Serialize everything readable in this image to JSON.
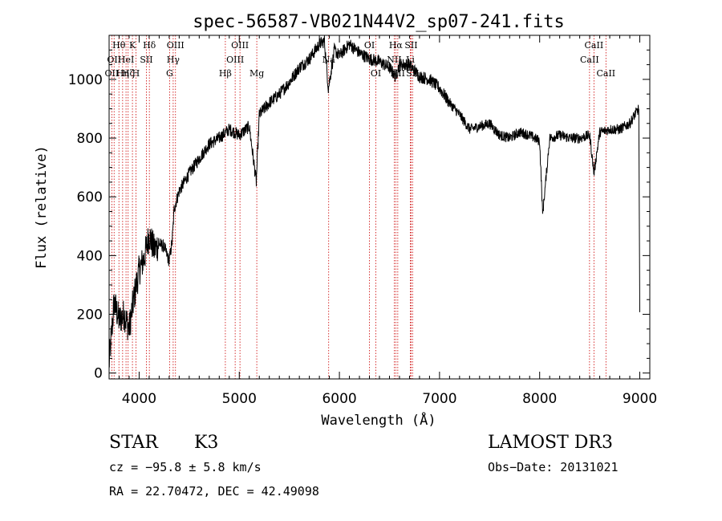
{
  "chart_data": {
    "type": "line",
    "title": "spec-56587-VB021N44V2_sp07-241.fits",
    "xlabel": "Wavelength (Å)",
    "ylabel": "Flux (relative)",
    "xlim": [
      3700,
      9100
    ],
    "ylim": [
      -20,
      1150
    ],
    "xticks": [
      4000,
      5000,
      6000,
      7000,
      8000,
      9000
    ],
    "xticklabels": [
      "4000",
      "5000",
      "6000",
      "7000",
      "8000",
      "9000"
    ],
    "yticks": [
      0,
      200,
      400,
      600,
      800,
      1000
    ],
    "yticklabels": [
      "0",
      "200",
      "400",
      "600",
      "800",
      "1000"
    ],
    "grid": false,
    "series": [
      {
        "name": "flux",
        "x": [
          3700,
          3750,
          3800,
          3850,
          3900,
          3950,
          4000,
          4050,
          4100,
          4150,
          4200,
          4250,
          4300,
          4330,
          4350,
          4400,
          4500,
          4600,
          4700,
          4800,
          4900,
          5000,
          5100,
          5170,
          5200,
          5300,
          5400,
          5500,
          5600,
          5700,
          5800,
          5850,
          5890,
          5950,
          6000,
          6100,
          6200,
          6300,
          6400,
          6500,
          6560,
          6600,
          6700,
          6800,
          6900,
          7000,
          7100,
          7200,
          7300,
          7400,
          7500,
          7600,
          7700,
          7800,
          7900,
          8000,
          8030,
          8100,
          8200,
          8300,
          8400,
          8500,
          8542,
          8600,
          8700,
          8800,
          8900,
          8950,
          8990,
          9000
        ],
        "y": [
          30,
          240,
          180,
          200,
          150,
          260,
          350,
          390,
          470,
          420,
          440,
          430,
          380,
          450,
          560,
          620,
          680,
          730,
          780,
          800,
          830,
          810,
          840,
          650,
          880,
          920,
          950,
          990,
          1040,
          1070,
          1120,
          1130,
          970,
          1100,
          1080,
          1120,
          1090,
          1070,
          1060,
          1040,
          1010,
          1050,
          1050,
          1010,
          1000,
          970,
          920,
          880,
          830,
          840,
          850,
          810,
          800,
          820,
          810,
          790,
          540,
          800,
          810,
          800,
          800,
          810,
          680,
          820,
          830,
          830,
          850,
          880,
          900,
          200
        ]
      }
    ],
    "lines": [
      {
        "x": 3727,
        "row": 2,
        "label": "OII"
      },
      {
        "x": 3750,
        "row": 1,
        "label": "OII"
      },
      {
        "x": 3798,
        "row": 0,
        "label": "Hθ"
      },
      {
        "x": 3835,
        "row": 2,
        "label": "Hη"
      },
      {
        "x": 3869,
        "row": 1,
        "label": "HeI"
      },
      {
        "x": 3890,
        "row": 2,
        "label": "Hζ"
      },
      {
        "x": 3933,
        "row": 0,
        "label": "K"
      },
      {
        "x": 3968,
        "row": 2,
        "label": "H"
      },
      {
        "x": 4072,
        "row": 1,
        "label": "SII"
      },
      {
        "x": 4102,
        "row": 0,
        "label": "Hδ"
      },
      {
        "x": 4304,
        "row": 2,
        "label": "G"
      },
      {
        "x": 4340,
        "row": 1,
        "label": "Hγ"
      },
      {
        "x": 4363,
        "row": 0,
        "label": "OIII"
      },
      {
        "x": 4861,
        "row": 2,
        "label": "Hβ"
      },
      {
        "x": 4959,
        "row": 1,
        "label": "OIII"
      },
      {
        "x": 5007,
        "row": 0,
        "label": "OIII"
      },
      {
        "x": 5175,
        "row": 2,
        "label": "Mg"
      },
      {
        "x": 5893,
        "row": 1,
        "label": "Na"
      },
      {
        "x": 6300,
        "row": 0,
        "label": "OI"
      },
      {
        "x": 6364,
        "row": 2,
        "label": "OI"
      },
      {
        "x": 6548,
        "row": 1,
        "label": "NII"
      },
      {
        "x": 6563,
        "row": 0,
        "label": "Hα"
      },
      {
        "x": 6583,
        "row": 2,
        "label": "NII"
      },
      {
        "x": 6708,
        "row": 1,
        "label": "Li"
      },
      {
        "x": 6716,
        "row": 0,
        "label": "SII"
      },
      {
        "x": 6731,
        "row": 2,
        "label": "SII"
      },
      {
        "x": 8498,
        "row": 1,
        "label": "CaII"
      },
      {
        "x": 8542,
        "row": 0,
        "label": "CaII"
      },
      {
        "x": 8662,
        "row": 2,
        "label": "CaII"
      }
    ]
  },
  "info": {
    "class_label": "STAR",
    "subclass_label": "K3",
    "survey": "LAMOST DR3",
    "cz": "cz = −95.8 ± 5.8 km/s",
    "obs_date": "Obs−Date: 20131021",
    "radec": "RA =  22.70472, DEC =  42.49098"
  },
  "colors": {
    "line": "#000000",
    "marker": "#cc0000",
    "background": "#ffffff"
  }
}
